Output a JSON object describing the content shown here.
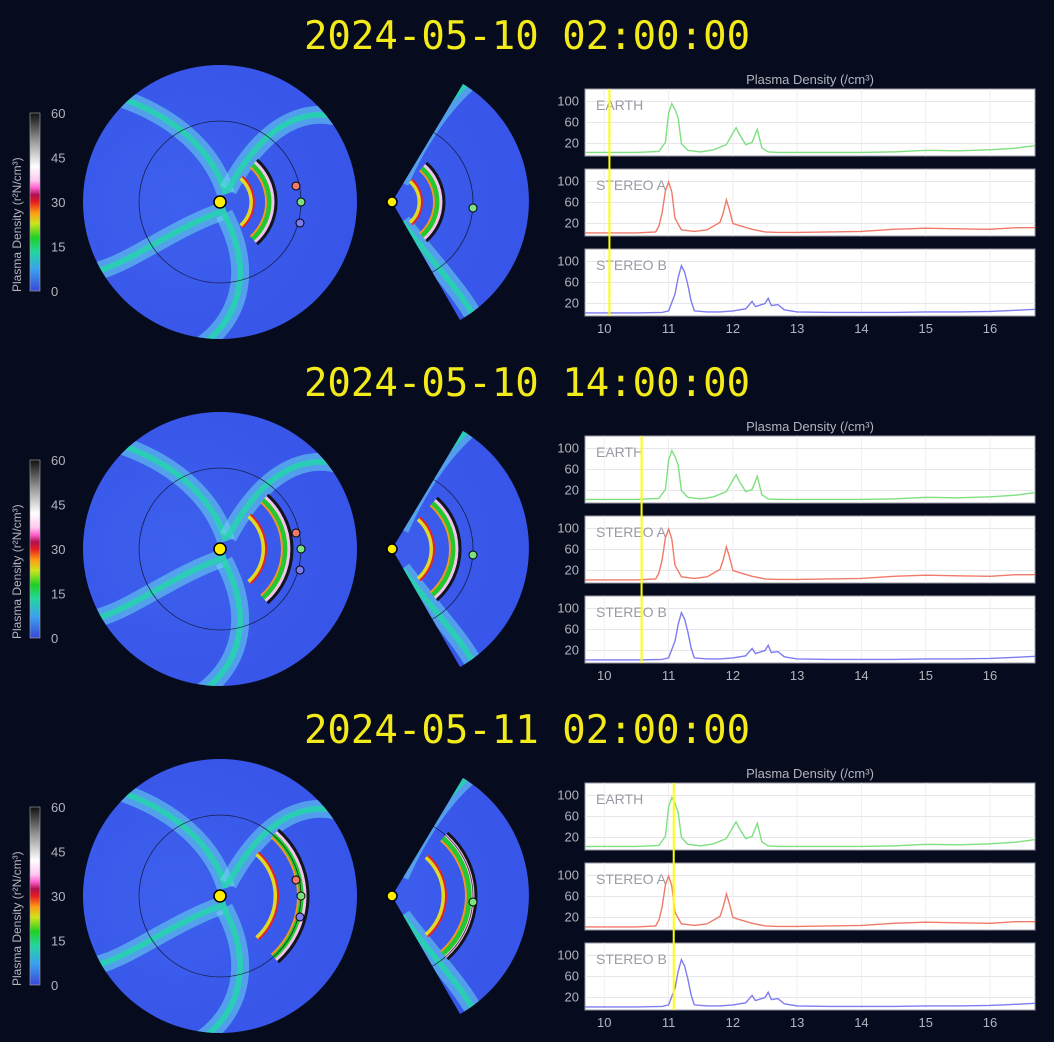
{
  "colors": {
    "background": "#060b1e",
    "timestamp": "#f3ea1a",
    "time_marker": "#ffff00",
    "earth": "#7fe07f",
    "stereo_a": "#f07a6a",
    "stereo_b": "#7d7cf0"
  },
  "colorbar": {
    "label": "Plasma Density (r²N/cm³)",
    "ticks": [
      "60",
      "45",
      "30",
      "15",
      "0"
    ]
  },
  "chart_data": {
    "type": "line",
    "title": "Plasma Density (/cm³)",
    "xlim": [
      9.7,
      16.7
    ],
    "x_ticks": [
      "10",
      "11",
      "12",
      "13",
      "14",
      "15",
      "16"
    ],
    "y_ticks": [
      "100",
      "60",
      "20"
    ],
    "ylim": [
      0,
      120
    ],
    "panels": [
      {
        "name": "EARTH",
        "color": "#7fe07f",
        "x": [
          9.7,
          10.0,
          10.5,
          10.85,
          10.95,
          11.0,
          11.05,
          11.1,
          11.15,
          11.2,
          11.3,
          11.5,
          11.7,
          11.9,
          12.0,
          12.05,
          12.1,
          12.2,
          12.3,
          12.38,
          12.45,
          12.55,
          12.7,
          13.0,
          13.5,
          14.0,
          14.5,
          15.0,
          15.5,
          16.0,
          16.4,
          16.7
        ],
        "y": [
          3,
          3,
          3,
          5,
          22,
          78,
          96,
          85,
          68,
          20,
          7,
          4,
          8,
          18,
          40,
          50,
          38,
          18,
          22,
          47,
          12,
          4,
          3,
          3,
          3,
          3,
          4,
          7,
          6,
          8,
          11,
          16
        ]
      },
      {
        "name": "STEREO A",
        "color": "#f07a6a",
        "x": [
          9.7,
          10.0,
          10.5,
          10.8,
          10.85,
          10.9,
          10.95,
          11.0,
          11.05,
          11.1,
          11.2,
          11.4,
          11.6,
          11.8,
          11.85,
          11.9,
          11.95,
          12.0,
          12.1,
          12.3,
          12.5,
          12.7,
          13.0,
          13.5,
          14.0,
          14.5,
          15.0,
          15.5,
          16.0,
          16.4,
          16.7
        ],
        "y": [
          2,
          2,
          2,
          4,
          15,
          40,
          82,
          99,
          80,
          30,
          8,
          5,
          8,
          22,
          40,
          65,
          45,
          20,
          16,
          9,
          4,
          3,
          3,
          4,
          5,
          9,
          11,
          10,
          9,
          12,
          12
        ]
      },
      {
        "name": "STEREO B",
        "color": "#7d7cf0",
        "x": [
          9.7,
          10.0,
          10.5,
          10.9,
          11.0,
          11.1,
          11.15,
          11.2,
          11.25,
          11.3,
          11.35,
          11.4,
          11.6,
          11.8,
          12.0,
          12.2,
          12.3,
          12.35,
          12.4,
          12.5,
          12.55,
          12.6,
          12.7,
          12.8,
          13.0,
          13.5,
          14.0,
          14.5,
          15.0,
          15.5,
          16.0,
          16.4,
          16.7
        ],
        "y": [
          2,
          2,
          2,
          3,
          6,
          38,
          70,
          92,
          80,
          55,
          25,
          6,
          4,
          4,
          6,
          10,
          24,
          14,
          16,
          20,
          30,
          16,
          18,
          8,
          4,
          3,
          3,
          3,
          4,
          4,
          5,
          7,
          9
        ]
      }
    ]
  },
  "frames": [
    {
      "timestamp": "2024-05-10 02:00:00",
      "marker_x": 10.08
    },
    {
      "timestamp": "2024-05-10 14:00:00",
      "marker_x": 10.58
    },
    {
      "timestamp": "2024-05-11 02:00:00",
      "marker_x": 11.08
    }
  ]
}
